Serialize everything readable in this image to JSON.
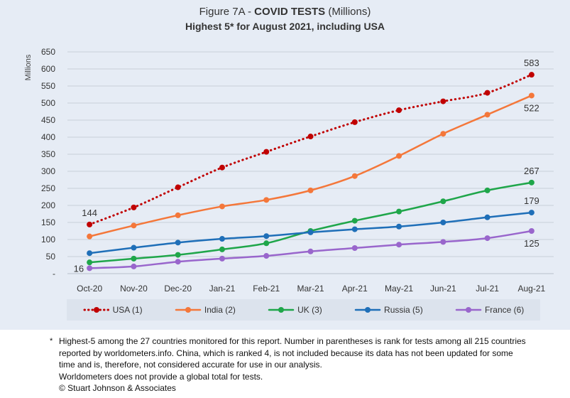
{
  "header": {
    "title_prefix": "Figure 7A - ",
    "title_bold": "COVID TESTS",
    "title_suffix": " (Millions)",
    "subtitle": "Highest 5* for August 2021, including USA"
  },
  "chart_data": {
    "type": "line",
    "title": "Figure 7A - COVID TESTS (Millions)",
    "subtitle": "Highest 5* for August 2021, including USA",
    "ylabel": "Millions",
    "xlabel": "",
    "ylim": [
      0,
      650
    ],
    "yticks": [
      "-",
      "50",
      "100",
      "150",
      "200",
      "250",
      "300",
      "350",
      "400",
      "450",
      "500",
      "550",
      "600",
      "650"
    ],
    "grid": true,
    "legend_position": "bottom",
    "categories": [
      "Oct-20",
      "Nov-20",
      "Dec-20",
      "Jan-21",
      "Feb-21",
      "Mar-21",
      "Apr-21",
      "May-21",
      "Jun-21",
      "Jul-21",
      "Aug-21"
    ],
    "series": [
      {
        "name": "USA (1)",
        "color": "#c00000",
        "style": "dotted",
        "values": [
          144,
          194,
          253,
          311,
          357,
          402,
          444,
          479,
          505,
          530,
          583
        ]
      },
      {
        "name": "India (2)",
        "color": "#f4773a",
        "style": "solid",
        "values": [
          109,
          141,
          171,
          197,
          216,
          244,
          286,
          345,
          410,
          466,
          522
        ]
      },
      {
        "name": "UK (3)",
        "color": "#1fa64a",
        "style": "solid",
        "values": [
          33,
          44,
          55,
          71,
          89,
          125,
          155,
          182,
          212,
          244,
          267
        ]
      },
      {
        "name": "Russia (5)",
        "color": "#1f6fb8",
        "style": "solid",
        "values": [
          60,
          76,
          91,
          102,
          110,
          121,
          130,
          138,
          150,
          165,
          179
        ]
      },
      {
        "name": "France (6)",
        "color": "#9966cc",
        "style": "solid",
        "values": [
          16,
          21,
          35,
          44,
          52,
          65,
          75,
          85,
          93,
          104,
          125
        ]
      }
    ],
    "annotations": [
      {
        "series": "USA (1)",
        "index": 0,
        "text": "144",
        "pos": "above"
      },
      {
        "series": "USA (1)",
        "index": 10,
        "text": "583",
        "pos": "above"
      },
      {
        "series": "India (2)",
        "index": 10,
        "text": "522",
        "pos": "below"
      },
      {
        "series": "UK (3)",
        "index": 10,
        "text": "267",
        "pos": "above"
      },
      {
        "series": "Russia (5)",
        "index": 10,
        "text": "179",
        "pos": "above"
      },
      {
        "series": "France (6)",
        "index": 10,
        "text": "125",
        "pos": "below"
      },
      {
        "series": "France (6)",
        "index": 0,
        "text": "16",
        "pos": "left"
      }
    ]
  },
  "footnote": {
    "star": "*",
    "line1": "Highest-5 among the 27 countries monitored for this report. Number in parentheses is rank for tests among all 215  countries",
    "line2": "reported by worldometers.info. China, which is ranked 4, is not included because its data has not been updated for some",
    "line3": "time and is, therefore, not considered accurate for use in our analysis.",
    "line4": "Worldometers does not provide a global total for tests.",
    "line5": "© Stuart Johnson & Associates"
  }
}
